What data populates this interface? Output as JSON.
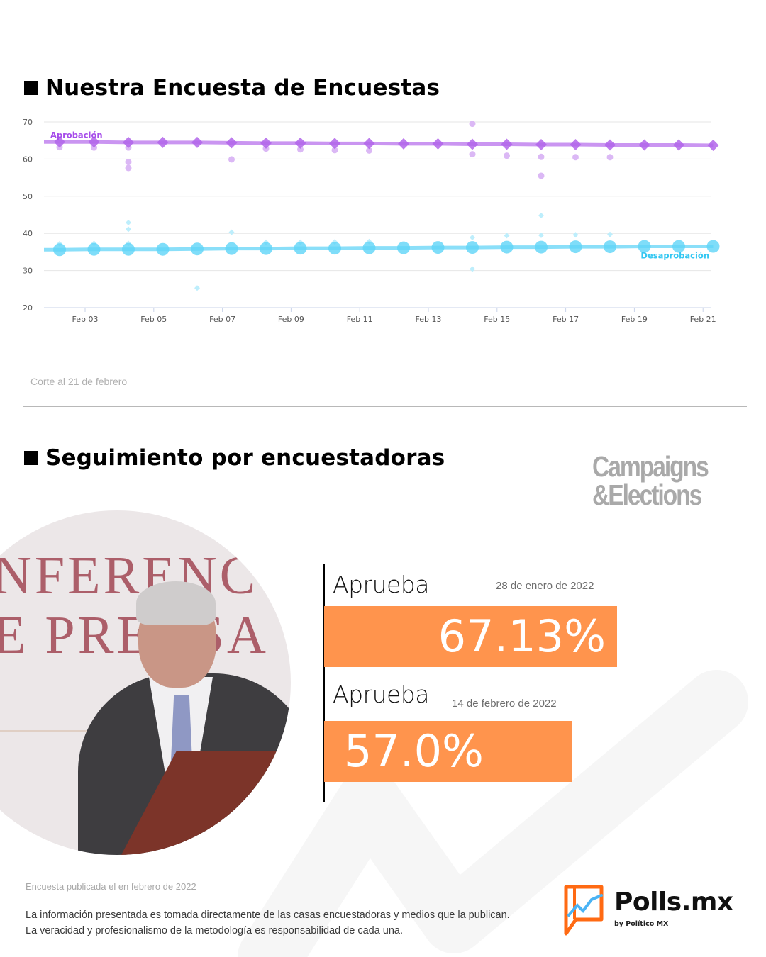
{
  "sections": {
    "poll_of_polls_title": "Nuestra Encuesta de Encuestas",
    "tracking_title": "Seguimiento por encuestadoras"
  },
  "chart_caption": "Corte al 21 de febrero",
  "pollster_logo": {
    "line1": "Campaigns",
    "line2": "&Elections"
  },
  "results": [
    {
      "label": "Aprueba",
      "date": "28 de enero de 2022",
      "value": "67.13%"
    },
    {
      "label": "Aprueba",
      "date": "14 de febrero de 2022",
      "value": "57.0%"
    }
  ],
  "footer": {
    "published": "Encuesta publicada el en febrero de 2022",
    "disclaimer_line1": "La información presentada es tomada directamente de las casas encuestadoras y medios que la publican.",
    "disclaimer_line2": "La veracidad y profesionalismo de la metodología es responsabilidad de cada una."
  },
  "brand": {
    "name": "Polls.mx",
    "sub": "by Político MX"
  },
  "colors": {
    "approval": "#a64dea",
    "disapproval": "#4dd2f7",
    "bar": "#ff944d"
  },
  "chart_data": {
    "type": "line",
    "title": "Nuestra Encuesta de Encuestas",
    "xlabel": "",
    "ylabel": "",
    "ylim": [
      20,
      70
    ],
    "yticks": [
      20,
      30,
      40,
      50,
      60,
      70
    ],
    "xticks": [
      "Feb 03",
      "Feb 05",
      "Feb 07",
      "Feb 09",
      "Feb 11",
      "Feb 13",
      "Feb 15",
      "Feb 17",
      "Feb 19",
      "Feb 21"
    ],
    "grid": true,
    "x": [
      "Feb 02",
      "Feb 03",
      "Feb 04",
      "Feb 05",
      "Feb 06",
      "Feb 07",
      "Feb 08",
      "Feb 09",
      "Feb 10",
      "Feb 11",
      "Feb 12",
      "Feb 13",
      "Feb 14",
      "Feb 15",
      "Feb 16",
      "Feb 17",
      "Feb 18",
      "Feb 19",
      "Feb 20",
      "Feb 21"
    ],
    "series": [
      {
        "name": "Aprobación",
        "values": [
          64.6,
          64.6,
          64.5,
          64.5,
          64.5,
          64.4,
          64.3,
          64.3,
          64.2,
          64.2,
          64.1,
          64.1,
          64.0,
          64.0,
          63.9,
          63.9,
          63.8,
          63.8,
          63.8,
          63.7
        ]
      },
      {
        "name": "Desaprobación",
        "values": [
          35.6,
          35.7,
          35.7,
          35.7,
          35.8,
          35.9,
          35.9,
          36.0,
          36.0,
          36.1,
          36.1,
          36.2,
          36.2,
          36.3,
          36.3,
          36.4,
          36.4,
          36.5,
          36.5,
          36.5
        ]
      }
    ],
    "scatter_approval": [
      [
        0,
        63.2
      ],
      [
        1,
        63.1
      ],
      [
        2,
        63.1
      ],
      [
        2,
        59.2
      ],
      [
        2,
        57.6
      ],
      [
        5,
        59.9
      ],
      [
        6,
        62.8
      ],
      [
        7,
        62.6
      ],
      [
        8,
        62.4
      ],
      [
        9,
        62.3
      ],
      [
        12,
        69.5
      ],
      [
        12,
        61.3
      ],
      [
        13,
        60.9
      ],
      [
        14,
        60.6
      ],
      [
        14,
        55.5
      ],
      [
        15,
        60.5
      ],
      [
        16,
        60.5
      ]
    ],
    "scatter_disapproval": [
      [
        0,
        37.2
      ],
      [
        1,
        37.3
      ],
      [
        2,
        42.9
      ],
      [
        2,
        41.1
      ],
      [
        2,
        37.3
      ],
      [
        4,
        25.3
      ],
      [
        5,
        40.3
      ],
      [
        6,
        37.6
      ],
      [
        7,
        37.6
      ],
      [
        8,
        37.7
      ],
      [
        9,
        37.8
      ],
      [
        12,
        38.9
      ],
      [
        12,
        30.4
      ],
      [
        13,
        39.4
      ],
      [
        14,
        44.8
      ],
      [
        14,
        39.5
      ],
      [
        15,
        39.6
      ],
      [
        16,
        39.7
      ]
    ],
    "legend": "inline labels: Aprobación (top-left), Desaprobación (bottom-right)"
  }
}
